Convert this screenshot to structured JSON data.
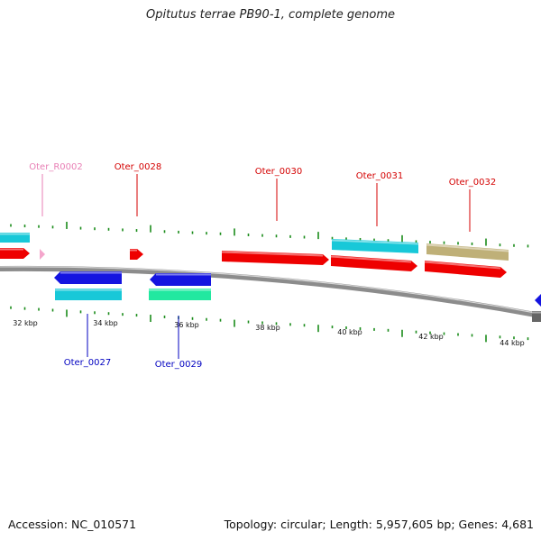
{
  "title": "Opitutus terrae PB90-1, complete genome",
  "footer": {
    "accession": "Accession: NC_010571",
    "summary": "Topology: circular; Length: 5,957,605 bp; Genes: 4,681"
  },
  "colors": {
    "backbone": "#8c8c8c",
    "tick": "#1a8c1a",
    "label_forward": "#d40000",
    "label_reverse": "#0000c0",
    "label_rna": "#e87fb5",
    "red": "#ee0000",
    "blue": "#1414e0",
    "cyan": "#18c8d8",
    "green": "#22e8a0",
    "khaki": "#bfb078",
    "pink": "#f4a6cc"
  },
  "scale_labels": [
    "32 kbp",
    "34 kbp",
    "36 kbp",
    "38 kbp",
    "40 kbp",
    "42 kbp",
    "44 kbp"
  ],
  "gene_labels": [
    {
      "id": "Oter_R0002",
      "text": "Oter_R0002",
      "kind": "rna"
    },
    {
      "id": "Oter_0028",
      "text": "Oter_0028",
      "kind": "forward"
    },
    {
      "id": "Oter_0030",
      "text": "Oter_0030",
      "kind": "forward"
    },
    {
      "id": "Oter_0031",
      "text": "Oter_0031",
      "kind": "forward"
    },
    {
      "id": "Oter_0032",
      "text": "Oter_0032",
      "kind": "forward"
    },
    {
      "id": "Oter_0027",
      "text": "Oter_0027",
      "kind": "reverse"
    },
    {
      "id": "Oter_0029",
      "text": "Oter_0029",
      "kind": "reverse"
    }
  ]
}
